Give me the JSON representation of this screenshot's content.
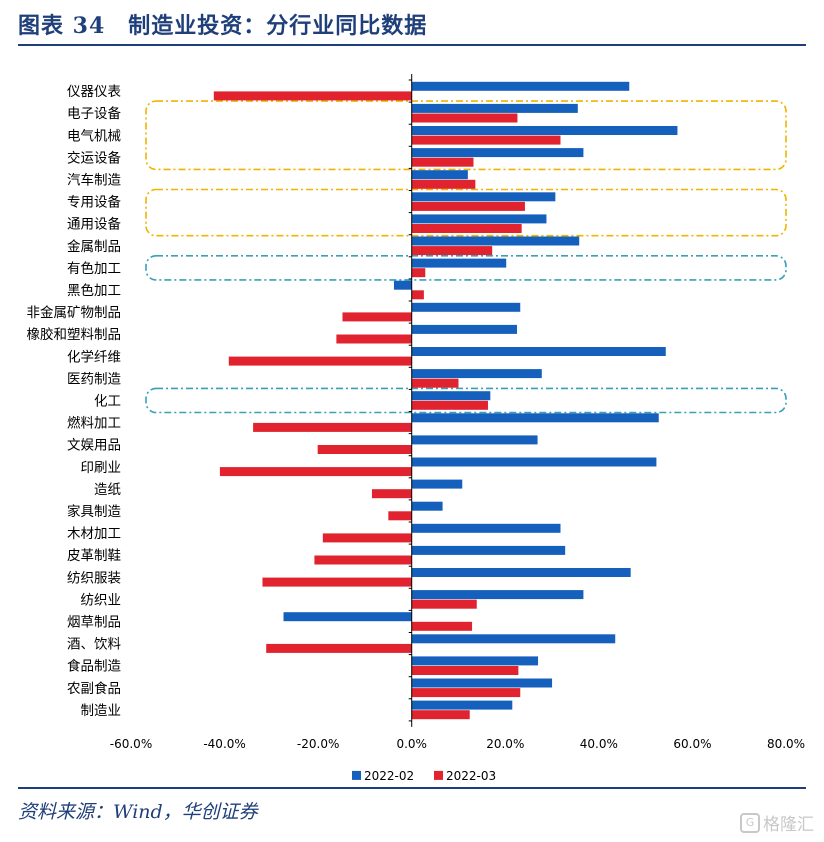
{
  "header": {
    "title": "图表 34　制造业投资：分行业同比数据"
  },
  "footer": {
    "source": "资料来源：Wind，华创证券",
    "watermark_text": "格隆汇"
  },
  "colors": {
    "series_2022_02": "#1560bd",
    "series_2022_03": "#e0232e",
    "highlight_gold": "#f0b400",
    "highlight_teal": "#3aa0b8",
    "brand": "#1f3f7a"
  },
  "chart_data": {
    "type": "bar",
    "orientation": "horizontal",
    "categories": [
      "仪器仪表",
      "电子设备",
      "电气机械",
      "交运设备",
      "汽车制造",
      "专用设备",
      "通用设备",
      "金属制品",
      "有色加工",
      "黑色加工",
      "非金属矿物制品",
      "橡胶和塑料制品",
      "化学纤维",
      "医药制造",
      "化工",
      "燃料加工",
      "文娱用品",
      "印刷业",
      "造纸",
      "家具制造",
      "木材加工",
      "皮革制鞋",
      "纺织服装",
      "纺织业",
      "烟草制品",
      "酒、饮料",
      "食品制造",
      "农副食品",
      "制造业"
    ],
    "series": [
      {
        "name": "2022-02",
        "values": [
          46.5,
          35.5,
          56.8,
          36.7,
          12.0,
          30.7,
          28.8,
          35.8,
          20.2,
          -3.8,
          23.2,
          22.5,
          54.3,
          27.8,
          16.8,
          52.8,
          26.9,
          52.3,
          10.8,
          6.6,
          31.8,
          32.8,
          46.8,
          36.7,
          -27.4,
          43.5,
          27.0,
          30.0,
          21.5
        ]
      },
      {
        "name": "2022-03",
        "values": [
          -42.3,
          22.6,
          31.8,
          13.2,
          13.6,
          24.2,
          23.5,
          17.2,
          2.9,
          2.6,
          -14.8,
          -16.1,
          -39.1,
          10.0,
          16.3,
          -33.9,
          -20.1,
          -41.0,
          -8.5,
          -5.0,
          -19.0,
          -20.8,
          -31.9,
          13.9,
          12.9,
          -31.1,
          22.8,
          23.2,
          12.4
        ]
      }
    ],
    "xlim": [
      -60,
      80
    ],
    "xticks": [
      -60,
      -40,
      -20,
      0,
      20,
      40,
      60,
      80
    ],
    "xtick_labels": [
      "-60.0%",
      "-40.0%",
      "-20.0%",
      "0.0%",
      "20.0%",
      "40.0%",
      "60.0%",
      "80.0%"
    ],
    "legend_position": "bottom",
    "grid": false,
    "highlight_groups": [
      {
        "color": "gold",
        "style": "dash-dot",
        "start": "电子设备",
        "end": "交运设备"
      },
      {
        "color": "gold",
        "style": "dash-dot",
        "start": "专用设备",
        "end": "通用设备"
      },
      {
        "color": "teal",
        "style": "dash-dot",
        "start": "有色加工",
        "end": "有色加工"
      },
      {
        "color": "teal",
        "style": "dash-dot",
        "start": "化工",
        "end": "化工"
      }
    ]
  }
}
